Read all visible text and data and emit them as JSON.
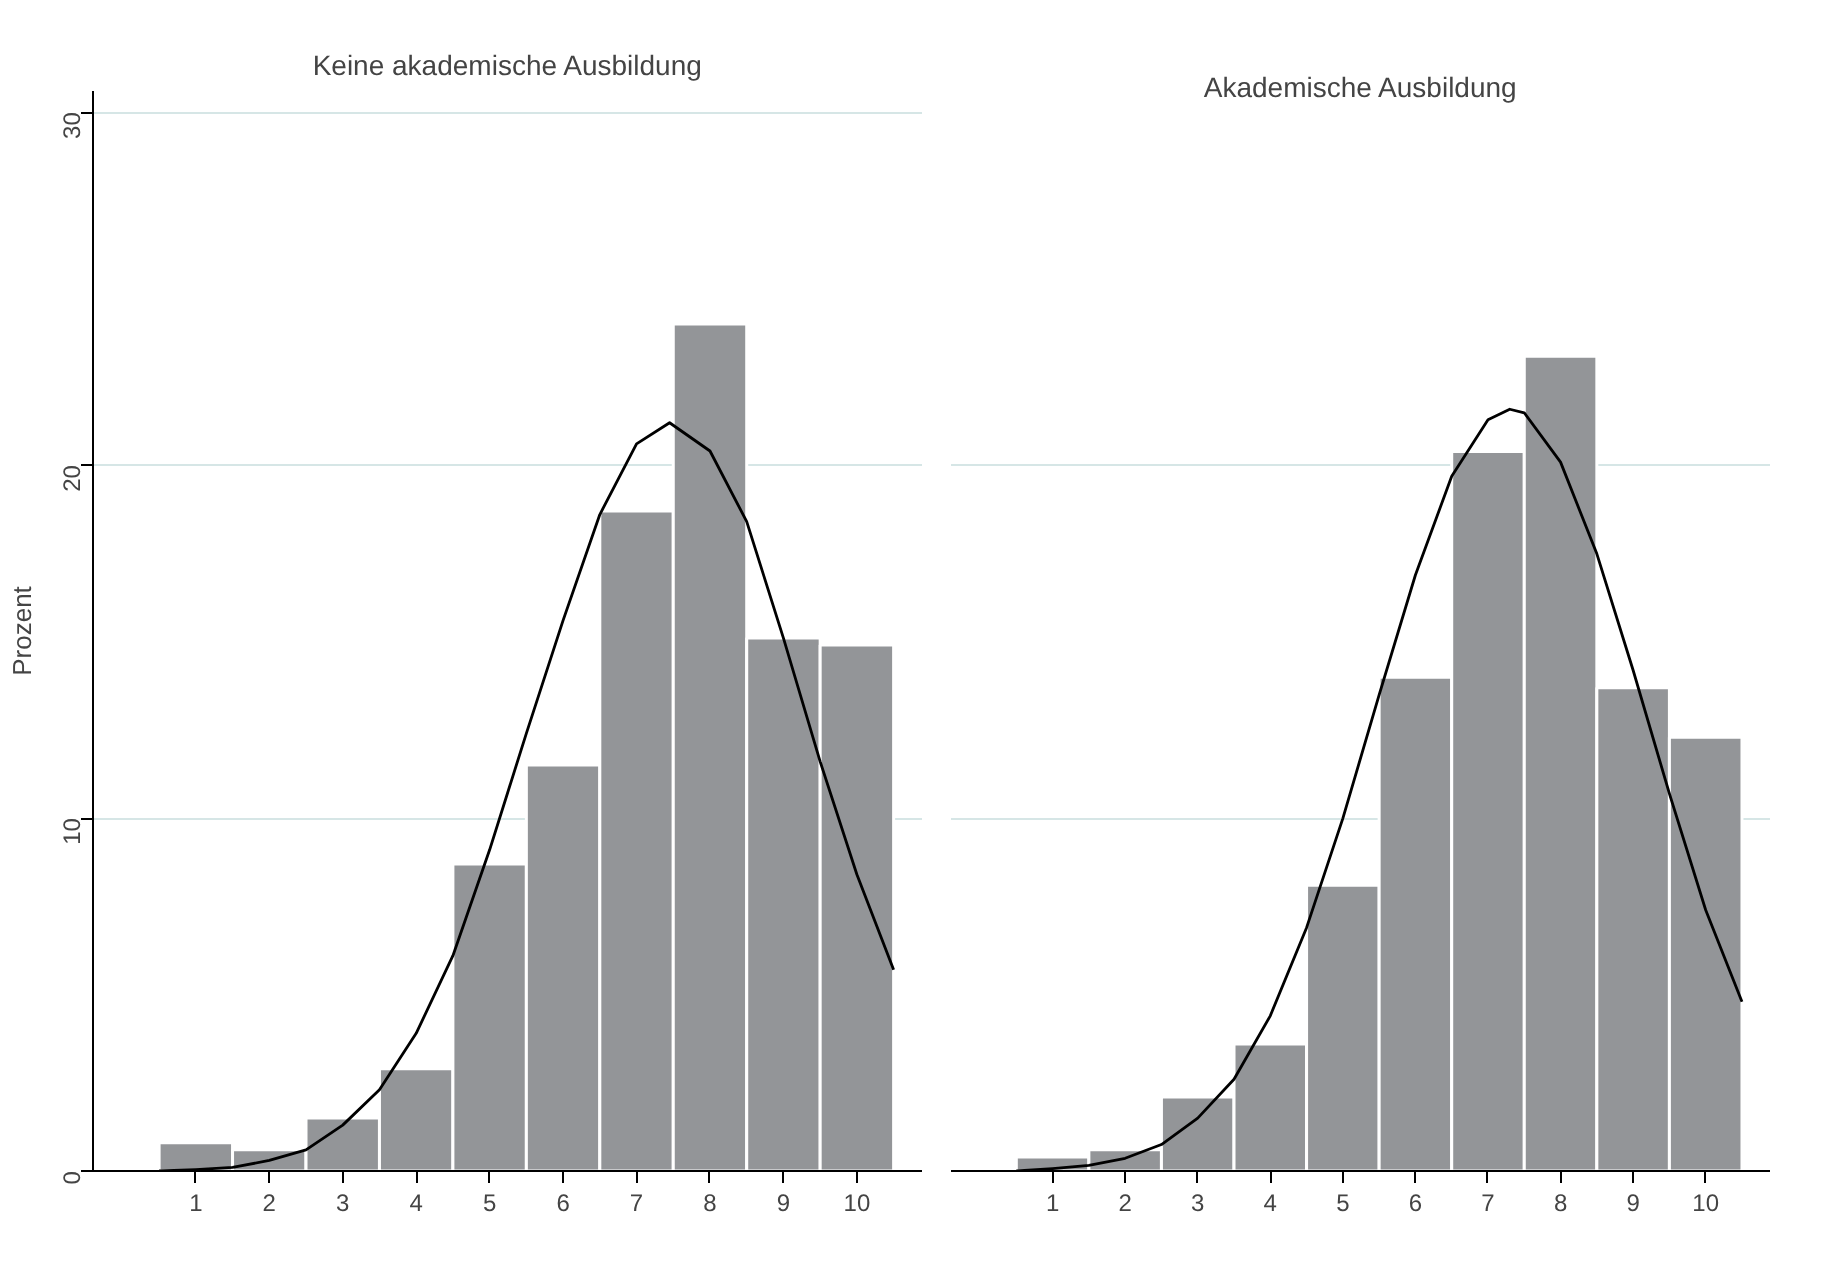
{
  "chart_data": [
    {
      "type": "histogram",
      "title": "Keine akademische Ausbildung",
      "ylabel": "Prozent",
      "bins": [
        0.5,
        1.5,
        2.5,
        3.5,
        4.5,
        5.5,
        6.5,
        7.5,
        8.5,
        9.5,
        10.5
      ],
      "xlim": [
        -0.4,
        10.9
      ],
      "xticks": [
        1,
        2,
        3,
        4,
        5,
        6,
        7,
        8,
        9,
        10
      ],
      "ylim": [
        0,
        30.6
      ],
      "yticks": [
        0,
        10,
        20,
        30
      ],
      "grid": "y",
      "series": [
        {
          "color": "#939598",
          "values": [
            0.8,
            0.6,
            1.5,
            2.9,
            8.7,
            11.5,
            18.7,
            24.0,
            15.1,
            14.9
          ]
        },
        {
          "type": "line",
          "color": "#000000",
          "x": [
            0.5,
            1,
            1.5,
            2,
            2.5,
            3,
            3.5,
            4,
            4.5,
            5,
            5.5,
            6,
            6.5,
            7,
            7.45,
            8,
            8.5,
            9,
            9.5,
            10,
            10.5
          ],
          "values": [
            0.0,
            0.04,
            0.1,
            0.3,
            0.6,
            1.3,
            2.3,
            3.9,
            6.1,
            9.1,
            12.4,
            15.6,
            18.6,
            20.6,
            21.2,
            20.4,
            18.4,
            15.1,
            11.6,
            8.4,
            5.7
          ]
        }
      ]
    },
    {
      "type": "histogram",
      "title": "Akademische Ausbildung",
      "bins": [
        0.5,
        1.5,
        2.5,
        3.5,
        4.5,
        5.5,
        6.5,
        7.5,
        8.5,
        9.5,
        10.5
      ],
      "xlim": [
        -0.4,
        10.9
      ],
      "xticks": [
        1,
        2,
        3,
        4,
        5,
        6,
        7,
        8,
        9,
        10
      ],
      "ylim": [
        0,
        30
      ],
      "yticks": [
        0,
        10,
        20,
        30
      ],
      "grid": "y",
      "tick_labels": "x",
      "series": [
        {
          "color": "#939598",
          "values": [
            0.4,
            0.6,
            2.1,
            3.6,
            8.1,
            14.0,
            20.4,
            23.1,
            13.7,
            12.3
          ]
        },
        {
          "type": "line",
          "color": "#000000",
          "x": [
            0.5,
            1,
            1.5,
            2,
            2.5,
            3,
            3.5,
            4,
            4.5,
            5,
            5.5,
            6,
            6.5,
            7,
            7.3,
            7.5,
            8,
            8.5,
            9,
            9.5,
            10,
            10.5
          ],
          "values": [
            0.0,
            0.07,
            0.16,
            0.36,
            0.75,
            1.5,
            2.6,
            4.4,
            6.9,
            10.0,
            13.5,
            16.9,
            19.7,
            21.3,
            21.6,
            21.5,
            20.1,
            17.5,
            14.2,
            10.7,
            7.4,
            4.8
          ]
        }
      ]
    }
  ]
}
